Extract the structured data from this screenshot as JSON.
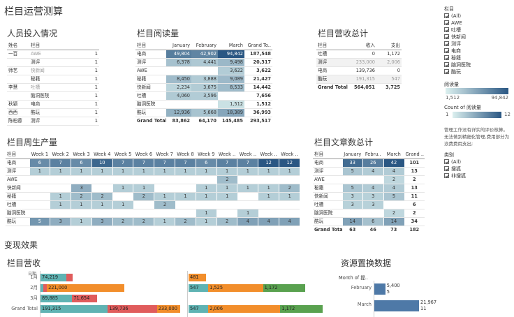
{
  "title": "栏目运营测算",
  "staff": {
    "title": "人员投入情况",
    "headers": [
      "姓名",
      "栏目"
    ],
    "rows": [
      [
        "一百",
        "AWE",
        "1"
      ],
      [
        "",
        "测评",
        "1"
      ],
      [
        "师艺",
        "快新闻",
        "1"
      ],
      [
        "",
        "秘籍",
        "1"
      ],
      [
        "李慧",
        "吐槽",
        "1"
      ],
      [
        "",
        "脑洞医院",
        "1"
      ],
      [
        "秋颖",
        "电商",
        "1"
      ],
      [
        "西西",
        "酷玩",
        "1"
      ],
      [
        "陈柏蓉",
        "测评",
        "1"
      ]
    ]
  },
  "reads": {
    "title": "栏目阅读量",
    "headers": [
      "栏目",
      "January",
      "February",
      "March",
      "Grand To.."
    ],
    "rows": [
      [
        "电商",
        "49,804",
        "42,902",
        "94,842",
        "187,548"
      ],
      [
        "测评",
        "6,378",
        "4,441",
        "9,498",
        "20,317"
      ],
      [
        "AWE",
        "",
        "",
        "3,622",
        "3,622"
      ],
      [
        "秘籍",
        "8,450",
        "3,888",
        "9,089",
        "21,427"
      ],
      [
        "快新闻",
        "2,234",
        "3,675",
        "8,533",
        "14,442"
      ],
      [
        "吐槽",
        "4,060",
        "3,596",
        "",
        "7,656"
      ],
      [
        "脑洞医院",
        "",
        "",
        "1,512",
        "1,512"
      ],
      [
        "酷玩",
        "12,936",
        "5,668",
        "18,389",
        "36,993"
      ]
    ],
    "total": [
      "Grand Total",
      "83,862",
      "64,170",
      "145,485",
      "293,517"
    ]
  },
  "revenue": {
    "title": "栏目营收总计",
    "headers": [
      "栏目",
      "收入",
      "支出"
    ],
    "rows": [
      [
        "吐槽",
        "0",
        "1,172"
      ],
      [
        "测评",
        "233,000",
        "2,006"
      ],
      [
        "电商",
        "139,736",
        "0"
      ],
      [
        "酷玩",
        "191,315",
        "547"
      ]
    ],
    "total": [
      "Grand Total",
      "564,051",
      "3,725"
    ]
  },
  "weekly": {
    "title": "栏目周生产量",
    "headers": [
      "栏目",
      "Week 1",
      "Week 2",
      "Week 3",
      "Week 4",
      "Week 5",
      "Week 6",
      "Week 7",
      "Week 8",
      "Week 9",
      "Week ..",
      "Week ..",
      "Week ..",
      "Week .."
    ],
    "rows": [
      [
        "电商",
        "6",
        "7",
        "6",
        "10",
        "7",
        "7",
        "7",
        "7",
        "6",
        "7",
        "7",
        "12",
        "12"
      ],
      [
        "测评",
        "1",
        "1",
        "1",
        "1",
        "1",
        "1",
        "1",
        "1",
        "1",
        "1",
        "1",
        "1",
        "1"
      ],
      [
        "AWE",
        "",
        "",
        "",
        "",
        "",
        "",
        "",
        "",
        "",
        "2",
        "",
        "",
        ""
      ],
      [
        "快新闻",
        "",
        "",
        "3",
        "",
        "1",
        "1",
        "",
        "",
        "1",
        "1",
        "1",
        "1",
        "2"
      ],
      [
        "秘籍",
        "",
        "1",
        "2",
        "2",
        "",
        "2",
        "1",
        "1",
        "1",
        "1",
        "",
        "1",
        "1"
      ],
      [
        "吐槽",
        "",
        "1",
        "1",
        "1",
        "1",
        "",
        "2",
        "",
        "",
        "",
        "",
        "",
        ""
      ],
      [
        "脑洞医院",
        "",
        "",
        "",
        "",
        "",
        "",
        "",
        "",
        "1",
        "",
        "1",
        "",
        ""
      ],
      [
        "酷玩",
        "5",
        "3",
        "1",
        "3",
        "2",
        "2",
        "1",
        "2",
        "1",
        "2",
        "4",
        "4",
        "4"
      ]
    ]
  },
  "articles": {
    "title": "栏目文章数总计",
    "headers": [
      "栏目",
      "January",
      "Febru..",
      "March",
      "Grand .."
    ],
    "rows": [
      [
        "电商",
        "33",
        "26",
        "42",
        "101"
      ],
      [
        "测评",
        "5",
        "4",
        "4",
        "13"
      ],
      [
        "AWE",
        "",
        "",
        "2",
        "2"
      ],
      [
        "秘籍",
        "5",
        "4",
        "4",
        "13"
      ],
      [
        "快新闻",
        "3",
        "3",
        "5",
        "11"
      ],
      [
        "吐槽",
        "3",
        "3",
        "",
        "6"
      ],
      [
        "脑洞医院",
        "",
        "",
        "2",
        "2"
      ],
      [
        "酷玩",
        "14",
        "6",
        "14",
        "34"
      ]
    ],
    "total": [
      "Grand Total",
      "63",
      "46",
      "73",
      "182"
    ]
  },
  "section2_title": "变现效果",
  "rev_chart": {
    "title": "栏目营收",
    "axis_label": "日期",
    "rows": [
      {
        "label": "1月",
        "left": [
          [
            "74,219",
            "#5fb3b3",
            74219
          ],
          [
            "",
            "#e05c5c",
            18000
          ]
        ],
        "right": [
          [
            "481",
            "#f28e2b",
            481
          ]
        ]
      },
      {
        "label": "2月",
        "left": [
          [
            "",
            "#5fb3b3",
            8000
          ],
          [
            "",
            "#e05c5c",
            10000
          ],
          [
            "221,000",
            "#f28e2b",
            221000
          ]
        ],
        "right": [
          [
            "547",
            "#5fb3b3",
            547
          ],
          [
            "1,525",
            "#f28e2b",
            1525
          ],
          [
            "1,172",
            "#59a14f",
            1172
          ]
        ]
      },
      {
        "label": "3月",
        "left": [
          [
            "89,885",
            "#5fb3b3",
            89885
          ],
          [
            "71,654",
            "#e05c5c",
            71654
          ]
        ],
        "right": []
      },
      {
        "label": "Grand Total",
        "left": [
          [
            "191,315",
            "#5fb3b3",
            191315
          ],
          [
            "139,736",
            "#e05c5c",
            139736
          ],
          [
            "233,000",
            "#f28e2b",
            233000
          ]
        ],
        "right": [
          [
            "547",
            "#5fb3b3",
            547
          ],
          [
            "2,006",
            "#f28e2b",
            2006
          ],
          [
            "1,172",
            "#59a14f",
            1172
          ]
        ]
      }
    ]
  },
  "exchange": {
    "title": "资源置换数据",
    "axis_label": "Month of 提..",
    "rows": [
      {
        "label": "February",
        "value": 5400,
        "value_text": "5,400",
        "sub": "5"
      },
      {
        "label": "March",
        "value": 21967,
        "value_text": "21,967",
        "sub": "11"
      }
    ]
  },
  "sidebar": {
    "filter1_title": "栏目",
    "filter1_items": [
      "(All)",
      "AWE",
      "吐槽",
      "快新闻",
      "测评",
      "电商",
      "秘籍",
      "脑洞医院",
      "酷玩"
    ],
    "legend1_title": "阅读量",
    "legend1_min": "1,512",
    "legend1_max": "94,842",
    "legend2_title": "Count of 阅读量",
    "legend2_min": "1",
    "legend2_max": "12",
    "note": "管理工作没有详实的评价核算。无法做到精细化管理,费用部分为浪费费用支出;",
    "filter2_title": "类别",
    "filter2_items": [
      "(All)",
      "搜狐",
      "非搜狐"
    ]
  },
  "colors": {
    "accent_dark": "#2a5783",
    "accent_light": "#dcf0ef",
    "teal": "#5fb3b3",
    "red": "#e05c5c",
    "orange": "#f28e2b",
    "green": "#59a14f",
    "steel": "#4e79a7"
  }
}
